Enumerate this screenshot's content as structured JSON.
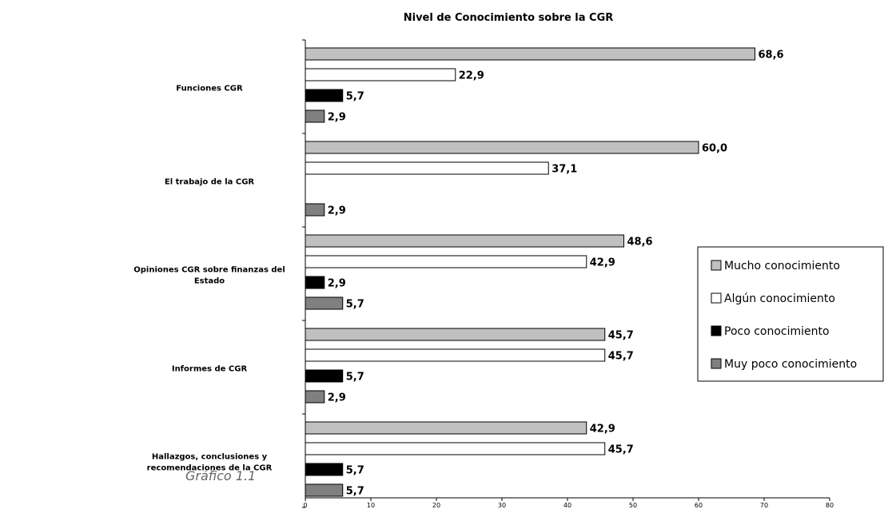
{
  "caption": "Gráfico 1.1",
  "chart_data": {
    "type": "bar",
    "orientation": "horizontal",
    "title": "Nivel de Conocimiento sobre la CGR",
    "xlabel": "",
    "ylabel": "",
    "xlim": [
      0,
      80
    ],
    "x_ticks": [
      0,
      10,
      20,
      30,
      40,
      50,
      60,
      70,
      80
    ],
    "grid": false,
    "legend_position": "right",
    "categories": [
      [
        "Funciones CGR"
      ],
      [
        "El trabajo de la CGR"
      ],
      [
        "Opiniones CGR sobre finanzas del",
        "Estado"
      ],
      [
        "Informes de CGR"
      ],
      [
        "Hallazgos, conclusiones y",
        "recomendaciones de la CGR"
      ]
    ],
    "series": [
      {
        "name": "Mucho conocimiento",
        "color": "#c0c0c0",
        "values": [
          68.6,
          60.0,
          48.6,
          45.7,
          42.9
        ],
        "labels": [
          "68,6",
          "60,0",
          "48,6",
          "45,7",
          "42,9"
        ]
      },
      {
        "name": "Algún conocimiento",
        "color": "#ffffff",
        "values": [
          22.9,
          37.1,
          42.9,
          45.7,
          45.7
        ],
        "labels": [
          "22,9",
          "37,1",
          "42,9",
          "45,7",
          "45,7"
        ]
      },
      {
        "name": "Poco conocimiento",
        "color": "#000000",
        "values": [
          5.7,
          null,
          2.9,
          5.7,
          5.7
        ],
        "labels": [
          "5,7",
          "",
          "2,9",
          "5,7",
          "5,7"
        ]
      },
      {
        "name": "Muy poco conocimiento",
        "color": "#808080",
        "values": [
          2.9,
          2.9,
          5.7,
          2.9,
          5.7
        ],
        "labels": [
          "2,9",
          "2,9",
          "5,7",
          "2,9",
          "5,7"
        ]
      }
    ]
  }
}
